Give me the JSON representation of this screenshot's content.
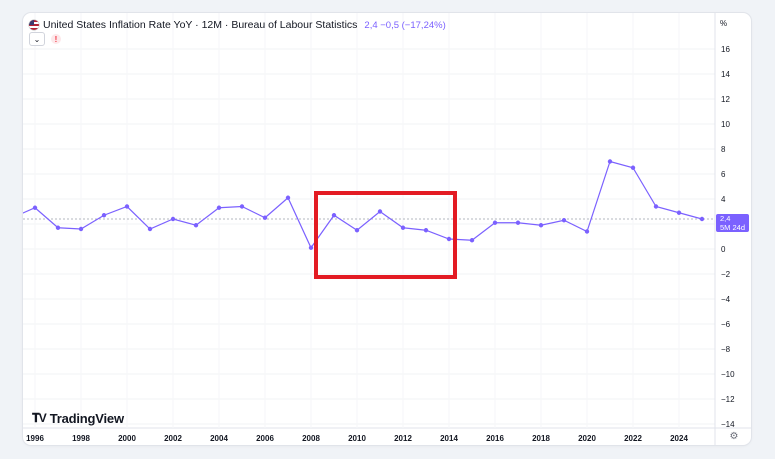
{
  "legend": {
    "title": "United States Inflation Rate YoY · 12M · Bureau of Labour Statistics",
    "values": "2,4  −0,5 (−17,24%)"
  },
  "price_scale": {
    "unit": "%",
    "badge_value": "2,4",
    "badge_sub": "5M 24d"
  },
  "branding": {
    "logo_text": "TradingView"
  },
  "icons": {
    "flag": "us-flag-icon",
    "collapse": "chevron-down-icon",
    "warning": "warning-icon",
    "settings": "gear-icon",
    "logo": "tradingview-logo-icon"
  },
  "colors": {
    "line": "#7b61ff",
    "highlight": "#e31b23",
    "badge": "#7b61ff"
  },
  "chart_data": {
    "type": "line",
    "x_tick_labels": [
      "1996",
      "1998",
      "2000",
      "2002",
      "2004",
      "2006",
      "2008",
      "2010",
      "2012",
      "2014",
      "2016",
      "2018",
      "2020",
      "2022",
      "2024"
    ],
    "y_tick_labels": [
      "16",
      "14",
      "12",
      "10",
      "8",
      "6",
      "4",
      "2",
      "0",
      "−2",
      "−4",
      "−6",
      "−8",
      "−10",
      "−12",
      "−14"
    ],
    "ylim": [
      -14.5,
      17.5
    ],
    "xlim": [
      1995.8,
      2025.1
    ],
    "series": [
      {
        "x": [
          1995,
          1996,
          1997,
          1998,
          1999,
          2000,
          2001,
          2002,
          2003,
          2004,
          2005,
          2006,
          2007,
          2008,
          2009,
          2010,
          2011,
          2012,
          2013,
          2014,
          2015,
          2016,
          2017,
          2018,
          2019,
          2020,
          2021,
          2022,
          2023,
          2024,
          2025
        ],
        "values": [
          2.5,
          3.3,
          1.7,
          1.6,
          2.7,
          3.4,
          1.6,
          2.4,
          1.9,
          3.3,
          3.4,
          2.5,
          4.1,
          0.1,
          2.7,
          1.5,
          3.0,
          1.7,
          1.5,
          0.8,
          0.7,
          2.1,
          2.1,
          1.9,
          2.3,
          1.4,
          7.0,
          6.5,
          3.4,
          2.9,
          2.4
        ]
      }
    ],
    "last_value_line": 2.4
  }
}
